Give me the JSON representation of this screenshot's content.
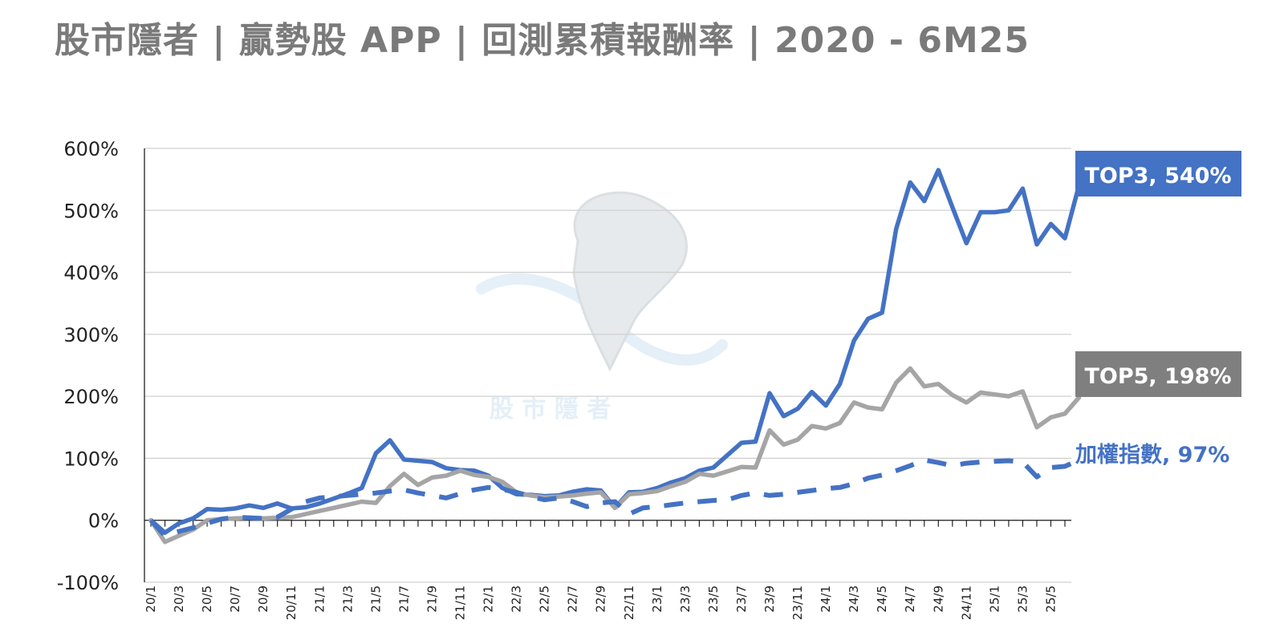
{
  "title": "股市隱者 | 贏勢股 APP | 回測累積報酬率 | 2020 - 6M25",
  "watermark": {
    "text": "股 市 隱 者"
  },
  "chart_data": {
    "type": "line",
    "title": "股市隱者 | 贏勢股 APP | 回測累積報酬率 | 2020 - 6M25",
    "ylim": [
      -100,
      600
    ],
    "yticks": [
      -100,
      0,
      100,
      200,
      300,
      400,
      500,
      600
    ],
    "ytick_labels": [
      "-100%",
      "0%",
      "100%",
      "200%",
      "300%",
      "400%",
      "500%",
      "600%"
    ],
    "grid": "horizontal",
    "x_tick_labels": [
      "20/1",
      "20/3",
      "20/5",
      "20/7",
      "20/9",
      "20/11",
      "21/1",
      "21/3",
      "21/5",
      "21/7",
      "21/9",
      "21/11",
      "22/1",
      "22/3",
      "22/5",
      "22/7",
      "22/9",
      "22/11",
      "23/1",
      "23/3",
      "23/5",
      "23/7",
      "23/9",
      "23/11",
      "24/1",
      "24/3",
      "24/5",
      "24/7",
      "24/9",
      "24/11",
      "25/1",
      "25/3",
      "25/5"
    ],
    "x_count": 66,
    "series": [
      {
        "name": "TOP3",
        "label": "TOP3, 540%",
        "color": "#4472c4",
        "style": "solid",
        "values": [
          0,
          -20,
          -5,
          3,
          18,
          17,
          19,
          24,
          20,
          27,
          19,
          21,
          27,
          35,
          43,
          52,
          108,
          129,
          98,
          96,
          94,
          84,
          81,
          80,
          72,
          52,
          42,
          41,
          39,
          40,
          46,
          50,
          48,
          20,
          45,
          46,
          52,
          61,
          68,
          80,
          85,
          105,
          125,
          127,
          205,
          168,
          180,
          207,
          185,
          220,
          290,
          325,
          335,
          470,
          545,
          515,
          565,
          505,
          447,
          497,
          497,
          500,
          535,
          445,
          478,
          455,
          540
        ]
      },
      {
        "name": "TOP5",
        "label": "TOP5, 198%",
        "color": "#a5a5a5",
        "style": "solid",
        "values": [
          0,
          -35,
          -25,
          -15,
          0,
          2,
          3,
          4,
          3,
          4,
          5,
          10,
          15,
          20,
          25,
          30,
          28,
          55,
          75,
          57,
          69,
          72,
          80,
          73,
          70,
          62,
          45,
          40,
          37,
          38,
          40,
          43,
          45,
          20,
          42,
          44,
          47,
          55,
          62,
          75,
          72,
          79,
          86,
          85,
          145,
          122,
          130,
          152,
          148,
          157,
          190,
          182,
          179,
          222,
          245,
          216,
          220,
          202,
          190,
          206,
          203,
          200,
          208,
          150,
          166,
          172,
          198
        ]
      },
      {
        "name": "加權指數",
        "label": "加權指數, 97%",
        "color": "#4472c4",
        "style": "dashed",
        "values": [
          0,
          -25,
          -18,
          -12,
          -5,
          2,
          5,
          4,
          3,
          5,
          18,
          30,
          36,
          38,
          40,
          42,
          44,
          47,
          49,
          44,
          40,
          36,
          43,
          49,
          53,
          50,
          45,
          38,
          33,
          36,
          30,
          22,
          28,
          30,
          10,
          20,
          22,
          25,
          28,
          30,
          32,
          33,
          40,
          44,
          40,
          42,
          45,
          48,
          51,
          53,
          59,
          68,
          73,
          80,
          88,
          97,
          93,
          88,
          92,
          94,
          95,
          96,
          94,
          70,
          85,
          87,
          97
        ]
      }
    ]
  }
}
